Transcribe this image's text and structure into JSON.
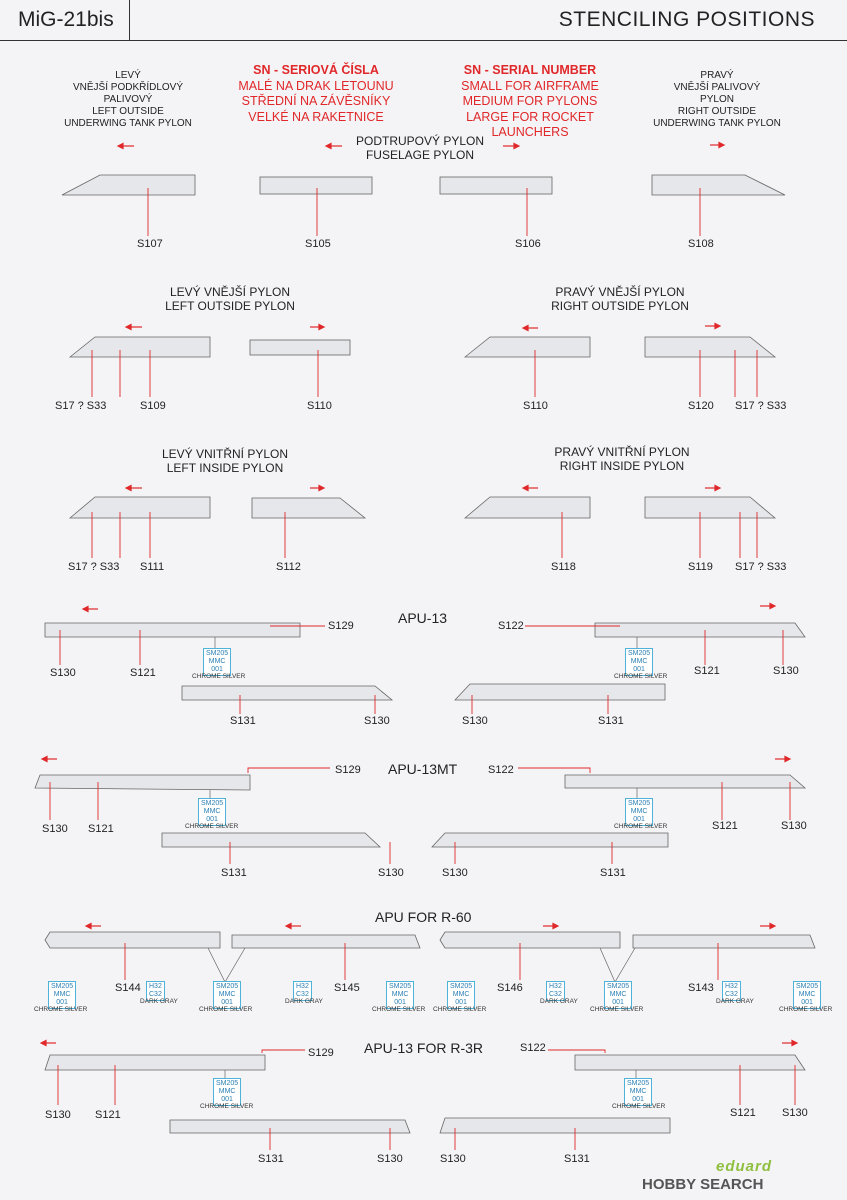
{
  "header": {
    "model": "MiG-21bis",
    "title": "STENCILING POSITIONS"
  },
  "top": {
    "left_tank": [
      "LEVÝ",
      "VNĚJŠÍ PODKŘÍDLOVÝ",
      "PALIVOVÝ",
      "LEFT OUTSIDE",
      "UNDERWING TANK PYLON"
    ],
    "right_tank": [
      "PRAVÝ",
      "VNĚJŠÍ PALIVOVÝ",
      "PYLON",
      "RIGHT OUTSIDE",
      "UNDERWING TANK PYLON"
    ],
    "sn_cz": [
      "SN - SERIOVÁ ČÍSLA",
      "MALÉ NA DRAK LETOUNU",
      "STŘEDNÍ NA ZÁVĚSNÍKY",
      "VELKÉ NA RAKETNICE"
    ],
    "sn_en": [
      "SN - SERIAL NUMBER",
      "SMALL FOR AIRFRAME",
      "MEDIUM FOR PYLONS",
      "LARGE FOR ROCKET LAUNCHERS"
    ],
    "fuselage": [
      "PODTRUPOVÝ PYLON",
      "FUSELAGE PYLON"
    ]
  },
  "sections": {
    "left_outside": [
      "LEVÝ VNĚJŠÍ PYLON",
      "LEFT OUTSIDE PYLON"
    ],
    "right_outside": [
      "PRAVÝ VNĚJŠÍ PYLON",
      "RIGHT OUTSIDE PYLON"
    ],
    "left_inside": [
      "LEVÝ VNITŘNÍ PYLON",
      "LEFT INSIDE PYLON"
    ],
    "right_inside": [
      "PRAVÝ VNITŘNÍ PYLON",
      "RIGHT INSIDE PYLON"
    ],
    "apu13": "APU-13",
    "apu13mt": "APU-13MT",
    "apur60": "APU FOR R-60",
    "apu13r3r": "APU-13 FOR R-3R"
  },
  "labels": {
    "s107": "S107",
    "s105": "S105",
    "s106": "S106",
    "s108": "S108",
    "s17a": "S17 ? S33",
    "s109": "S109",
    "s110a": "S110",
    "s110b": "S110",
    "s120": "S120",
    "s17b": "S17 ? S33",
    "s17c": "S17 ? S33",
    "s111": "S111",
    "s112": "S112",
    "s118": "S118",
    "s119": "S119",
    "s17d": "S17 ? S33",
    "a_s129": "S129",
    "a_s130l": "S130",
    "a_s121l": "S121",
    "a_s122": "S122",
    "a_s121r": "S121",
    "a_s130r": "S130",
    "a_s131l": "S131",
    "a_s130bl": "S130",
    "a_s130br": "S130",
    "a_s131r": "S131",
    "m_s129": "S129",
    "m_s130l": "S130",
    "m_s121l": "S121",
    "m_s122": "S122",
    "m_s121r": "S121",
    "m_s130r": "S130",
    "m_s131l": "S131",
    "m_s130bl": "S130",
    "m_s130br": "S130",
    "m_s131r": "S131",
    "r_s144": "S144",
    "r_s145": "S145",
    "r_s146": "S146",
    "r_s143": "S143",
    "x_s129": "S129",
    "x_s130l": "S130",
    "x_s121l": "S121",
    "x_s122": "S122",
    "x_s121r": "S121",
    "x_s130r": "S130",
    "x_s131l": "S131",
    "x_s130bl": "S130",
    "x_s130br": "S130",
    "x_s131r": "S131"
  },
  "paint": {
    "silver": [
      "SM205",
      "MMC",
      "001"
    ],
    "silver_name": "CHROME SILVER",
    "gray": [
      "H32",
      "C32"
    ],
    "gray_name": "DARK GRAY"
  },
  "footer": {
    "brand": "eduard",
    "watermark": "HOBBY SEARCH"
  }
}
